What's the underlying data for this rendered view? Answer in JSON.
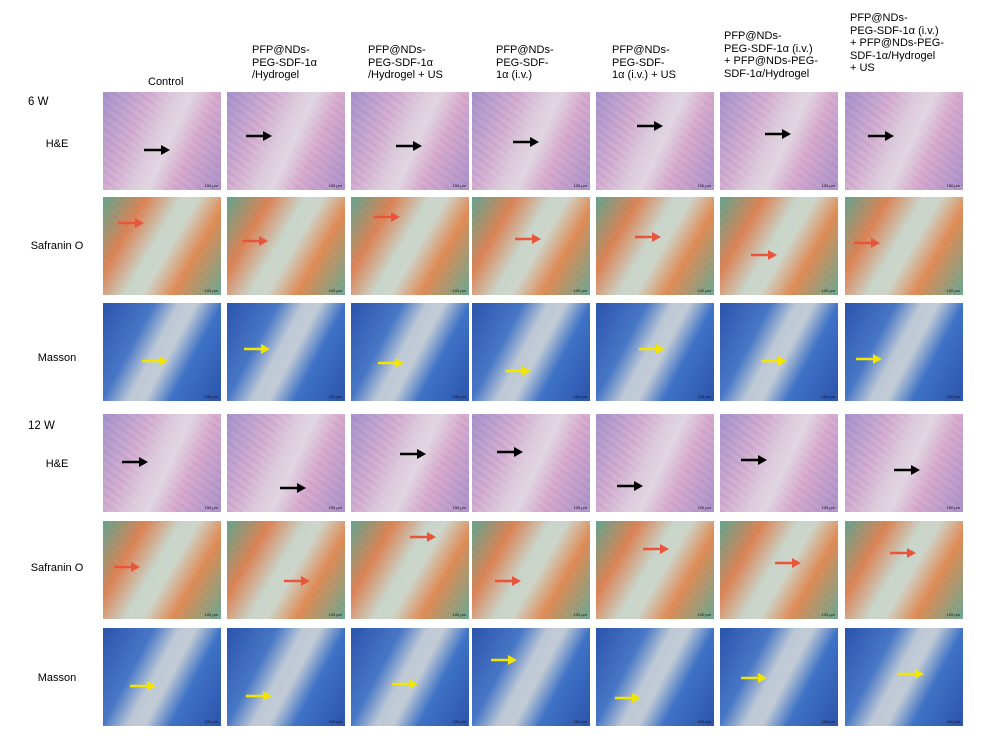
{
  "column_headers": [
    "Control",
    "PFP@NDs-\nPEG-SDF-1α\n/Hydrogel",
    "PFP@NDs-\nPEG-SDF-1α\n/Hydrogel + US",
    "PFP@NDs-\nPEG-SDF-\n1α (i.v.)",
    "PFP@NDs-\nPEG-SDF-\n1α (i.v.) + US",
    "PFP@NDs-\nPEG-SDF-1α (i.v.)\n+ PFP@NDs-PEG-\nSDF-1α/Hydrogel",
    "PFP@NDs-\nPEG-SDF-1α (i.v.)\n+ PFP@NDs-PEG-\nSDF-1α/Hydrogel\n+ US"
  ],
  "time_points": [
    "6 W",
    "12 W"
  ],
  "stains": [
    "H&E",
    "Safranin O",
    "Masson"
  ],
  "scale_bar_label": "100 μm",
  "arrow_colors": {
    "H&E": "#000000",
    "Safranin O": "#e8553a",
    "Masson": "#f2e600"
  }
}
